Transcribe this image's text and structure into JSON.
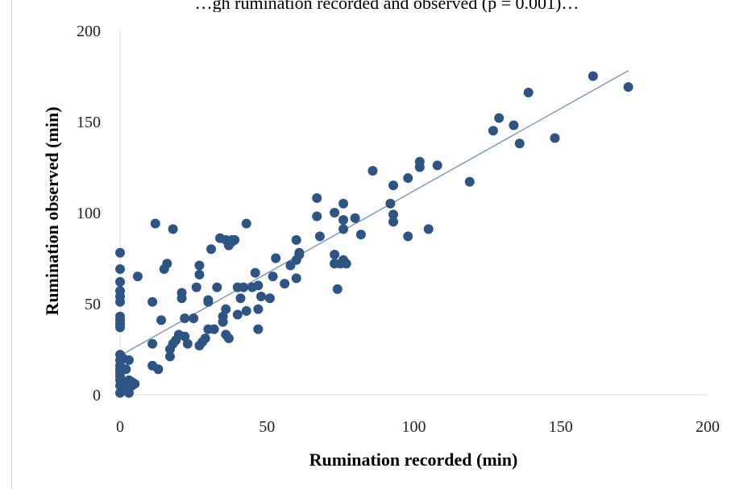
{
  "clipped_title": "…gh rumination recorded and observed (p = 0.001)…",
  "chart_data": {
    "type": "scatter",
    "xlabel": "Rumination recorded (min)",
    "ylabel": "Rumination observed (min)",
    "xlim": [
      0,
      200
    ],
    "ylim": [
      0,
      200
    ],
    "x_ticks": [
      "0",
      "50",
      "100",
      "150",
      "200"
    ],
    "y_ticks": [
      "0",
      "50",
      "100",
      "150",
      "200"
    ],
    "grid": false,
    "legend": "none",
    "marker_color": "#2e5484",
    "trendline_color": "#6f8fb3",
    "trendline": {
      "x": [
        0,
        173
      ],
      "y": [
        21.5,
        178
      ]
    },
    "points": [
      [
        0,
        1
      ],
      [
        0,
        5
      ],
      [
        0,
        8
      ],
      [
        0,
        10
      ],
      [
        0,
        12
      ],
      [
        0,
        14
      ],
      [
        0,
        16
      ],
      [
        0,
        19
      ],
      [
        0,
        22
      ],
      [
        0,
        37
      ],
      [
        0,
        39
      ],
      [
        0,
        41
      ],
      [
        0,
        43
      ],
      [
        0,
        51
      ],
      [
        0,
        54
      ],
      [
        0,
        57
      ],
      [
        0,
        62
      ],
      [
        0,
        69
      ],
      [
        0,
        78
      ],
      [
        1,
        6
      ],
      [
        1,
        20
      ],
      [
        2,
        3
      ],
      [
        2,
        14
      ],
      [
        3,
        8
      ],
      [
        3,
        19
      ],
      [
        3,
        1
      ],
      [
        4,
        5
      ],
      [
        4,
        7
      ],
      [
        5,
        6
      ],
      [
        6,
        65
      ],
      [
        11,
        28
      ],
      [
        11,
        51
      ],
      [
        11,
        16
      ],
      [
        12,
        94
      ],
      [
        13,
        14
      ],
      [
        14,
        41
      ],
      [
        15,
        69
      ],
      [
        16,
        72
      ],
      [
        17,
        21
      ],
      [
        17,
        25
      ],
      [
        18,
        28
      ],
      [
        18,
        91
      ],
      [
        19,
        30
      ],
      [
        20,
        33
      ],
      [
        21,
        53
      ],
      [
        21,
        56
      ],
      [
        22,
        32
      ],
      [
        22,
        42
      ],
      [
        23,
        28
      ],
      [
        25,
        42
      ],
      [
        26,
        59
      ],
      [
        27,
        27
      ],
      [
        27,
        66
      ],
      [
        27,
        71
      ],
      [
        28,
        29
      ],
      [
        29,
        31
      ],
      [
        30,
        36
      ],
      [
        30,
        51
      ],
      [
        30,
        52
      ],
      [
        31,
        80
      ],
      [
        32,
        36
      ],
      [
        33,
        59
      ],
      [
        34,
        86
      ],
      [
        35,
        40
      ],
      [
        35,
        43
      ],
      [
        36,
        47
      ],
      [
        36,
        85
      ],
      [
        36,
        33
      ],
      [
        37,
        82
      ],
      [
        38,
        84
      ],
      [
        38,
        85
      ],
      [
        37,
        31
      ],
      [
        39,
        85
      ],
      [
        40,
        44
      ],
      [
        40,
        59
      ],
      [
        41,
        53
      ],
      [
        42,
        59
      ],
      [
        43,
        46
      ],
      [
        43,
        94
      ],
      [
        45,
        59
      ],
      [
        46,
        67
      ],
      [
        47,
        36
      ],
      [
        47,
        47
      ],
      [
        47,
        60
      ],
      [
        48,
        54
      ],
      [
        51,
        53
      ],
      [
        52,
        65
      ],
      [
        53,
        75
      ],
      [
        56,
        61
      ],
      [
        58,
        71
      ],
      [
        60,
        64
      ],
      [
        60,
        74
      ],
      [
        61,
        77
      ],
      [
        60,
        85
      ],
      [
        61,
        78
      ],
      [
        67,
        98
      ],
      [
        67,
        108
      ],
      [
        68,
        87
      ],
      [
        73,
        72
      ],
      [
        73,
        77
      ],
      [
        73,
        100
      ],
      [
        74,
        58
      ],
      [
        75,
        72
      ],
      [
        76,
        74
      ],
      [
        76,
        91
      ],
      [
        76,
        96
      ],
      [
        76,
        105
      ],
      [
        77,
        72
      ],
      [
        80,
        97
      ],
      [
        82,
        88
      ],
      [
        86,
        123
      ],
      [
        92,
        105
      ],
      [
        93,
        99
      ],
      [
        93,
        95
      ],
      [
        93,
        115
      ],
      [
        98,
        87
      ],
      [
        98,
        119
      ],
      [
        102,
        125
      ],
      [
        102,
        128
      ],
      [
        105,
        91
      ],
      [
        108,
        126
      ],
      [
        119,
        117
      ],
      [
        127,
        145
      ],
      [
        129,
        152
      ],
      [
        134,
        148
      ],
      [
        136,
        138
      ],
      [
        139,
        166
      ],
      [
        148,
        141
      ],
      [
        161,
        175
      ],
      [
        173,
        169
      ]
    ]
  }
}
